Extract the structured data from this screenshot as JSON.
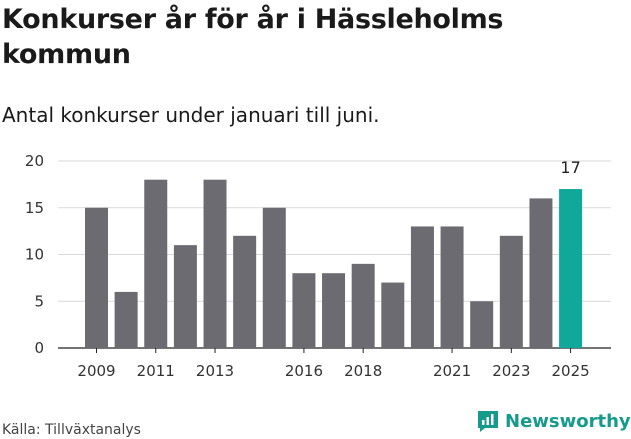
{
  "header": {
    "title": "Konkurser år för år i Hässleholms kommun",
    "subtitle": "Antal konkurser under januari till juni."
  },
  "footer": {
    "source": "Källa: Tillväxtanalys",
    "brand": "Newsworthy"
  },
  "colors": {
    "bar": "#6d6b72",
    "highlight": "#10a89b",
    "brand": "#159a8c"
  },
  "icons": {
    "brand_logo": "chart-speech-bubble-icon"
  },
  "chart_data": {
    "type": "bar",
    "x": [
      2009,
      2010,
      2011,
      2012,
      2013,
      2014,
      2015,
      2016,
      2017,
      2018,
      2019,
      2020,
      2021,
      2022,
      2023,
      2024,
      2025
    ],
    "values": [
      15,
      6,
      18,
      11,
      18,
      12,
      15,
      8,
      8,
      9,
      7,
      13,
      13,
      5,
      12,
      16,
      17
    ],
    "xticks": [
      "2009",
      "2011",
      "2013",
      "2016",
      "2018",
      "2021",
      "2023",
      "2025"
    ],
    "yticks": [
      0,
      5,
      10,
      15,
      20
    ],
    "ylim": [
      0,
      20
    ],
    "highlight": {
      "x": 2025,
      "label": "17"
    },
    "grid": true,
    "xlabel": "",
    "ylabel": ""
  }
}
